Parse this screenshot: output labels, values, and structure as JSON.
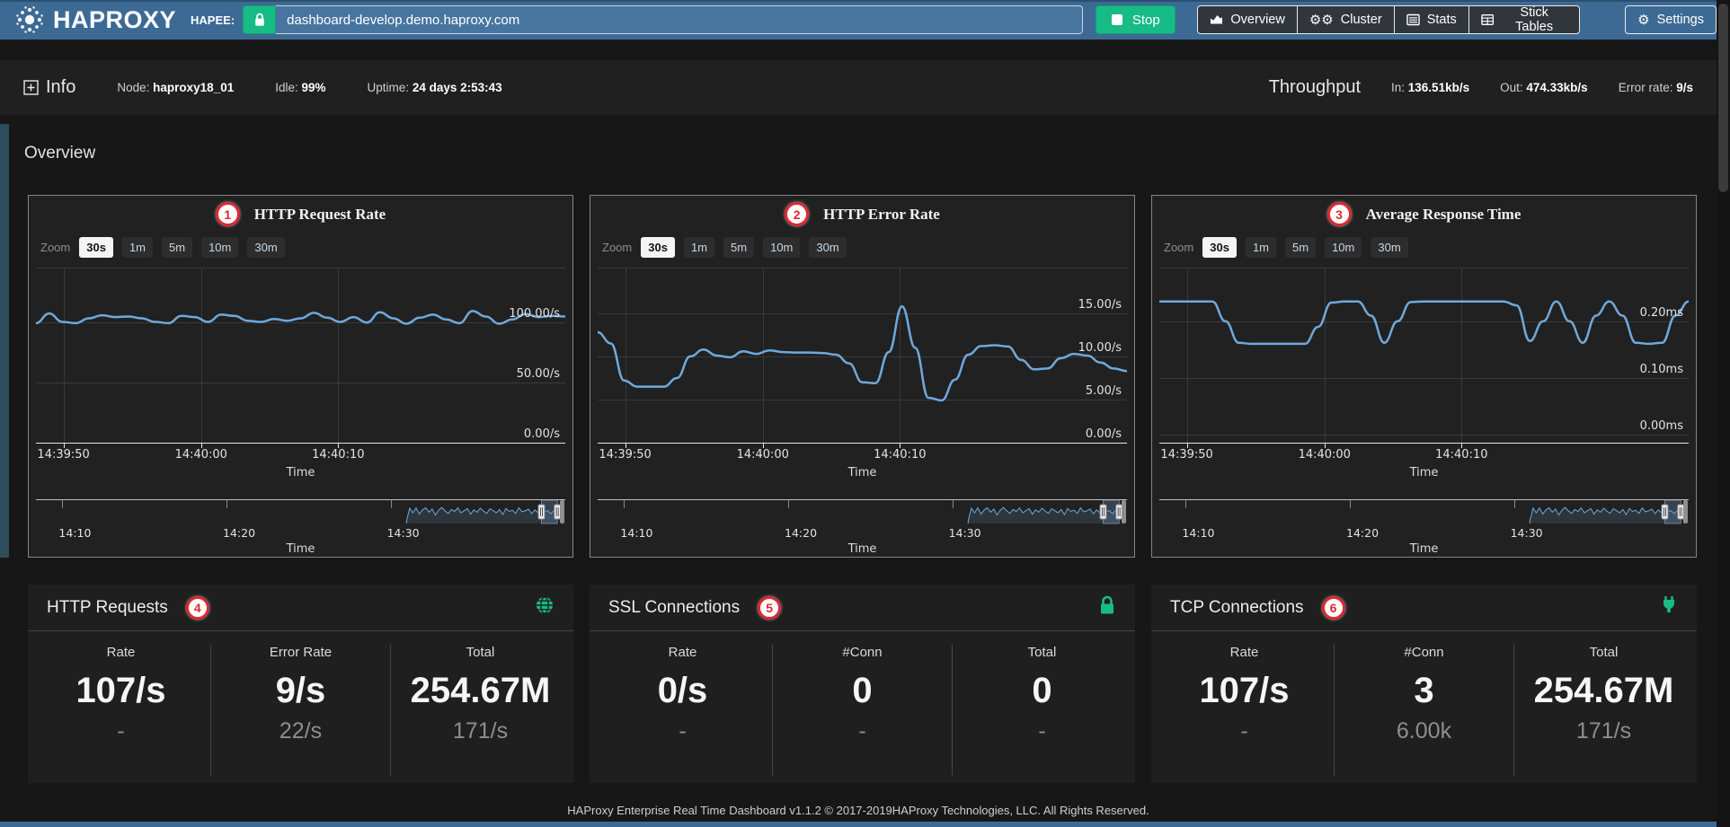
{
  "topbar": {
    "logo_text": "HAPROXY",
    "hapee_label": "HAPEE:",
    "url": "dashboard-develop.demo.haproxy.com",
    "stop_label": "Stop",
    "nav": [
      {
        "label": "Overview"
      },
      {
        "label": "Cluster"
      },
      {
        "label": "Stats"
      },
      {
        "label": "Stick Tables"
      }
    ],
    "settings_label": "Settings"
  },
  "infobar": {
    "info_label": "Info",
    "node_label": "Node:",
    "node_value": "haproxy18_01",
    "idle_label": "Idle:",
    "idle_value": "99%",
    "uptime_label": "Uptime:",
    "uptime_value": "24 days 2:53:43",
    "throughput_label": "Throughput",
    "in_label": "In:",
    "in_value": "136.51kb/s",
    "out_label": "Out:",
    "out_value": "474.33kb/s",
    "error_label": "Error rate:",
    "error_value": "9/s"
  },
  "section_title": "Overview",
  "zoom": {
    "label": "Zoom",
    "options": [
      "30s",
      "1m",
      "5m",
      "10m",
      "30m"
    ],
    "active": "30s"
  },
  "chart_style": {
    "line_color": "#6fa9dc",
    "grid_color": "#3a3a3a",
    "axis_color": "#e6e6e6"
  },
  "chart_data": [
    {
      "type": "line",
      "badge": "1",
      "title": "HTTP Request Rate",
      "xlabel": "Time",
      "ylim": [
        0,
        145
      ],
      "yticks": [
        {
          "v": 100,
          "label": "100.00/s"
        },
        {
          "v": 50,
          "label": "50.00/s"
        },
        {
          "v": 0,
          "label": "0.00/s"
        }
      ],
      "xticks": [
        {
          "pos": 0.052,
          "label": "14:39:50"
        },
        {
          "pos": 0.312,
          "label": "14:40:00"
        },
        {
          "pos": 0.571,
          "label": "14:40:10"
        }
      ],
      "values": [
        99,
        107,
        100,
        99,
        103,
        105.5,
        104,
        104.5,
        103,
        100,
        99,
        105,
        104,
        100,
        106,
        105,
        101,
        100,
        102.5,
        101,
        103,
        107.5,
        103.5,
        100,
        104,
        99.5,
        108,
        103,
        98.5,
        103.5,
        106,
        102,
        99,
        109,
        104.5,
        98.5,
        102,
        106.5,
        104,
        105,
        104.5
      ]
    },
    {
      "type": "line",
      "badge": "2",
      "title": "HTTP Error Rate",
      "xlabel": "Time",
      "ylim": [
        0,
        20.3
      ],
      "yticks": [
        {
          "v": 15,
          "label": "15.00/s"
        },
        {
          "v": 10,
          "label": "10.00/s"
        },
        {
          "v": 5,
          "label": "5.00/s"
        },
        {
          "v": 0,
          "label": "0.00/s"
        }
      ],
      "xticks": [
        {
          "pos": 0.052,
          "label": "14:39:50"
        },
        {
          "pos": 0.312,
          "label": "14:40:00"
        },
        {
          "pos": 0.571,
          "label": "14:40:10"
        }
      ],
      "values": [
        12.8,
        11.5,
        7.2,
        6.5,
        6.5,
        6.5,
        7.5,
        10,
        10.8,
        10.1,
        9.9,
        10.6,
        10.3,
        10.7,
        10.5,
        10.45,
        10.45,
        10.4,
        10.2,
        9.2,
        7,
        6.9,
        10.5,
        15.8,
        11,
        5.2,
        4.9,
        7.3,
        10.2,
        11.2,
        11.3,
        11.15,
        9.6,
        8.5,
        8.6,
        9.8,
        10.3,
        10.1,
        9.3,
        8.6,
        8.3
      ]
    },
    {
      "type": "line",
      "badge": "3",
      "title": "Average Response Time",
      "xlabel": "Time",
      "ylim": [
        -0.015,
        0.295
      ],
      "yticks": [
        {
          "v": 0.2,
          "label": "0.20ms"
        },
        {
          "v": 0.1,
          "label": "0.10ms"
        },
        {
          "v": 0.0,
          "label": "0.00ms"
        }
      ],
      "xticks": [
        {
          "pos": 0.052,
          "label": "14:39:50"
        },
        {
          "pos": 0.312,
          "label": "14:40:00"
        },
        {
          "pos": 0.571,
          "label": "14:40:10"
        }
      ],
      "values": [
        0.235,
        0.235,
        0.235,
        0.235,
        0.235,
        0.2,
        0.162,
        0.16,
        0.16,
        0.16,
        0.16,
        0.16,
        0.19,
        0.233,
        0.235,
        0.235,
        0.21,
        0.162,
        0.2,
        0.234,
        0.235,
        0.235,
        0.235,
        0.235,
        0.235,
        0.235,
        0.235,
        0.228,
        0.165,
        0.2,
        0.235,
        0.2,
        0.162,
        0.21,
        0.235,
        0.21,
        0.162,
        0.16,
        0.162,
        0.21,
        0.235
      ]
    }
  ],
  "navigator": {
    "xlabel": "Time",
    "ticks": [
      {
        "pos": 0.05,
        "label": "14:10"
      },
      {
        "pos": 0.36,
        "label": "14:20"
      },
      {
        "pos": 0.67,
        "label": "14:30"
      }
    ],
    "spark_start": 0.7,
    "spark_end": 0.985,
    "sel_start": 0.955,
    "spark": [
      0.95,
      0.32,
      0.55,
      0.3,
      0.62,
      0.4,
      0.3,
      0.52,
      0.36,
      0.66,
      0.42,
      0.28,
      0.45,
      0.58,
      0.38,
      0.48,
      0.3,
      0.55,
      0.44,
      0.34,
      0.62,
      0.4,
      0.52,
      0.32,
      0.46,
      0.58,
      0.34,
      0.44,
      0.55,
      0.38,
      0.64,
      0.33,
      0.48,
      0.42,
      0.58,
      0.3,
      0.5,
      0.45,
      0.36,
      0.6,
      0.4,
      0.54,
      0.34,
      0.48,
      0.44,
      0.6,
      0.42,
      0.5
    ]
  },
  "cards": [
    {
      "title": "HTTP Requests",
      "badge": "4",
      "icon": "globe",
      "columns": [
        {
          "label": "Rate",
          "value": "107/s",
          "sub": "-"
        },
        {
          "label": "Error Rate",
          "value": "9/s",
          "sub": "22/s"
        },
        {
          "label": "Total",
          "value": "254.67M",
          "sub": "171/s"
        }
      ]
    },
    {
      "title": "SSL Connections",
      "badge": "5",
      "icon": "lock",
      "columns": [
        {
          "label": "Rate",
          "value": "0/s",
          "sub": "-"
        },
        {
          "label": "#Conn",
          "value": "0",
          "sub": "-"
        },
        {
          "label": "Total",
          "value": "0",
          "sub": "-"
        }
      ]
    },
    {
      "title": "TCP Connections",
      "badge": "6",
      "icon": "plug",
      "columns": [
        {
          "label": "Rate",
          "value": "107/s",
          "sub": "-"
        },
        {
          "label": "#Conn",
          "value": "3",
          "sub": "6.00k"
        },
        {
          "label": "Total",
          "value": "254.67M",
          "sub": "171/s"
        }
      ]
    }
  ],
  "footer": "HAProxy Enterprise Real Time Dashboard v1.1.2 © 2017-2019HAProxy Technologies, LLC. All Rights Reserved."
}
